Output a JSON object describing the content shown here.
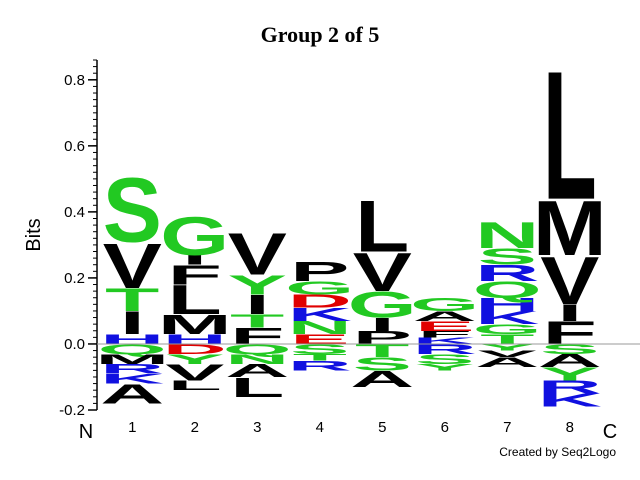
{
  "title": "Group 2 of 5",
  "ylabel": "Bits",
  "n_label": "N",
  "c_label": "C",
  "credit": "Created by Seq2Logo",
  "colors": {
    "green": "#22c922",
    "black": "#000000",
    "blue": "#1010e0",
    "red": "#e00000",
    "axis": "#000000",
    "zero_line": "#999999"
  },
  "chart_data": {
    "type": "sequence-logo",
    "title": "Group 2 of 5",
    "ylabel": "Bits",
    "ylim": [
      -0.2,
      0.8
    ],
    "yticks": [
      {
        "value": 0.8,
        "label": "0.8"
      },
      {
        "value": 0.6,
        "label": "0.6"
      },
      {
        "value": 0.4,
        "label": "0.4"
      },
      {
        "value": 0.2,
        "label": "0.2"
      },
      {
        "value": 0.0,
        "label": "0.0"
      },
      {
        "value": -0.2,
        "label": "-0.2"
      }
    ],
    "positions": [
      {
        "label": "1",
        "positive": [
          {
            "letter": "H",
            "bits": 0.03,
            "color": "blue"
          },
          {
            "letter": "I",
            "bits": 0.07,
            "color": "black"
          },
          {
            "letter": "T",
            "bits": 0.07,
            "color": "green"
          },
          {
            "letter": "V",
            "bits": 0.14,
            "color": "black"
          },
          {
            "letter": "S",
            "bits": 0.2,
            "color": "green"
          }
        ],
        "negative": [
          {
            "letter": "Q",
            "bits": 0.03,
            "color": "green"
          },
          {
            "letter": "M",
            "bits": 0.03,
            "color": "black"
          },
          {
            "letter": "R",
            "bits": 0.03,
            "color": "blue"
          },
          {
            "letter": "K",
            "bits": 0.03,
            "color": "blue"
          },
          {
            "letter": "A",
            "bits": 0.06,
            "color": "black"
          }
        ]
      },
      {
        "label": "2",
        "positive": [
          {
            "letter": "H",
            "bits": 0.03,
            "color": "blue"
          },
          {
            "letter": "M",
            "bits": 0.06,
            "color": "black"
          },
          {
            "letter": "L",
            "bits": 0.09,
            "color": "black"
          },
          {
            "letter": "F",
            "bits": 0.06,
            "color": "black"
          },
          {
            "letter": "I",
            "bits": 0.03,
            "color": "black"
          },
          {
            "letter": "G",
            "bits": 0.12,
            "color": "green"
          }
        ],
        "negative": [
          {
            "letter": "D",
            "bits": 0.03,
            "color": "red"
          },
          {
            "letter": "Y",
            "bits": 0.03,
            "color": "green"
          },
          {
            "letter": "V",
            "bits": 0.05,
            "color": "black"
          },
          {
            "letter": "L",
            "bits": 0.03,
            "color": "black"
          }
        ]
      },
      {
        "label": "3",
        "positive": [
          {
            "letter": "F",
            "bits": 0.05,
            "color": "black"
          },
          {
            "letter": "T",
            "bits": 0.04,
            "color": "green"
          },
          {
            "letter": "I",
            "bits": 0.06,
            "color": "black"
          },
          {
            "letter": "Y",
            "bits": 0.06,
            "color": "green"
          },
          {
            "letter": "V",
            "bits": 0.13,
            "color": "black"
          }
        ],
        "negative": [
          {
            "letter": "Q",
            "bits": 0.03,
            "color": "green"
          },
          {
            "letter": "N",
            "bits": 0.03,
            "color": "green"
          },
          {
            "letter": "A",
            "bits": 0.04,
            "color": "black"
          },
          {
            "letter": "L",
            "bits": 0.06,
            "color": "black"
          }
        ]
      },
      {
        "label": "4",
        "positive": [
          {
            "letter": "E",
            "bits": 0.03,
            "color": "red"
          },
          {
            "letter": "N",
            "bits": 0.04,
            "color": "green"
          },
          {
            "letter": "K",
            "bits": 0.04,
            "color": "blue"
          },
          {
            "letter": "D",
            "bits": 0.04,
            "color": "red"
          },
          {
            "letter": "G",
            "bits": 0.04,
            "color": "green"
          },
          {
            "letter": "P",
            "bits": 0.06,
            "color": "black"
          }
        ],
        "negative": [
          {
            "letter": "S",
            "bits": 0.03,
            "color": "green"
          },
          {
            "letter": "T",
            "bits": 0.02,
            "color": "green"
          },
          {
            "letter": "R",
            "bits": 0.03,
            "color": "blue"
          }
        ]
      },
      {
        "label": "5",
        "positive": [
          {
            "letter": "P",
            "bits": 0.04,
            "color": "black"
          },
          {
            "letter": "I",
            "bits": 0.04,
            "color": "black"
          },
          {
            "letter": "G",
            "bits": 0.08,
            "color": "green"
          },
          {
            "letter": "V",
            "bits": 0.12,
            "color": "black"
          },
          {
            "letter": "L",
            "bits": 0.16,
            "color": "black"
          }
        ],
        "negative": [
          {
            "letter": "T",
            "bits": 0.04,
            "color": "green"
          },
          {
            "letter": "S",
            "bits": 0.04,
            "color": "green"
          },
          {
            "letter": "A",
            "bits": 0.05,
            "color": "black"
          }
        ]
      },
      {
        "label": "6",
        "positive": [
          {
            "letter": "K",
            "bits": 0.02,
            "color": "blue"
          },
          {
            "letter": "F",
            "bits": 0.02,
            "color": "black"
          },
          {
            "letter": "E",
            "bits": 0.03,
            "color": "red"
          },
          {
            "letter": "A",
            "bits": 0.03,
            "color": "black"
          },
          {
            "letter": "G",
            "bits": 0.04,
            "color": "green"
          }
        ],
        "negative": [
          {
            "letter": "R",
            "bits": 0.03,
            "color": "blue"
          },
          {
            "letter": "S",
            "bits": 0.03,
            "color": "green"
          },
          {
            "letter": "Y",
            "bits": 0.02,
            "color": "green"
          }
        ]
      },
      {
        "label": "7",
        "positive": [
          {
            "letter": "T",
            "bits": 0.03,
            "color": "green"
          },
          {
            "letter": "G",
            "bits": 0.03,
            "color": "green"
          },
          {
            "letter": "K",
            "bits": 0.04,
            "color": "blue"
          },
          {
            "letter": "H",
            "bits": 0.04,
            "color": "blue"
          },
          {
            "letter": "Q",
            "bits": 0.05,
            "color": "green"
          },
          {
            "letter": "R",
            "bits": 0.05,
            "color": "blue"
          },
          {
            "letter": "S",
            "bits": 0.05,
            "color": "green"
          },
          {
            "letter": "N",
            "bits": 0.08,
            "color": "green"
          }
        ],
        "negative": [
          {
            "letter": "Y",
            "bits": 0.02,
            "color": "green"
          },
          {
            "letter": "V",
            "bits": 0.02,
            "color": "black"
          },
          {
            "letter": "A",
            "bits": 0.03,
            "color": "black"
          }
        ]
      },
      {
        "label": "8",
        "positive": [
          {
            "letter": "F",
            "bits": 0.07,
            "color": "black"
          },
          {
            "letter": "I",
            "bits": 0.05,
            "color": "black"
          },
          {
            "letter": "V",
            "bits": 0.15,
            "color": "black"
          },
          {
            "letter": "M",
            "bits": 0.17,
            "color": "black"
          },
          {
            "letter": "L",
            "bits": 0.4,
            "color": "black"
          }
        ],
        "negative": [
          {
            "letter": "S",
            "bits": 0.03,
            "color": "green"
          },
          {
            "letter": "A",
            "bits": 0.04,
            "color": "black"
          },
          {
            "letter": "Y",
            "bits": 0.04,
            "color": "green"
          },
          {
            "letter": "R",
            "bits": 0.04,
            "color": "blue"
          },
          {
            "letter": "K",
            "bits": 0.04,
            "color": "blue"
          }
        ]
      }
    ]
  }
}
